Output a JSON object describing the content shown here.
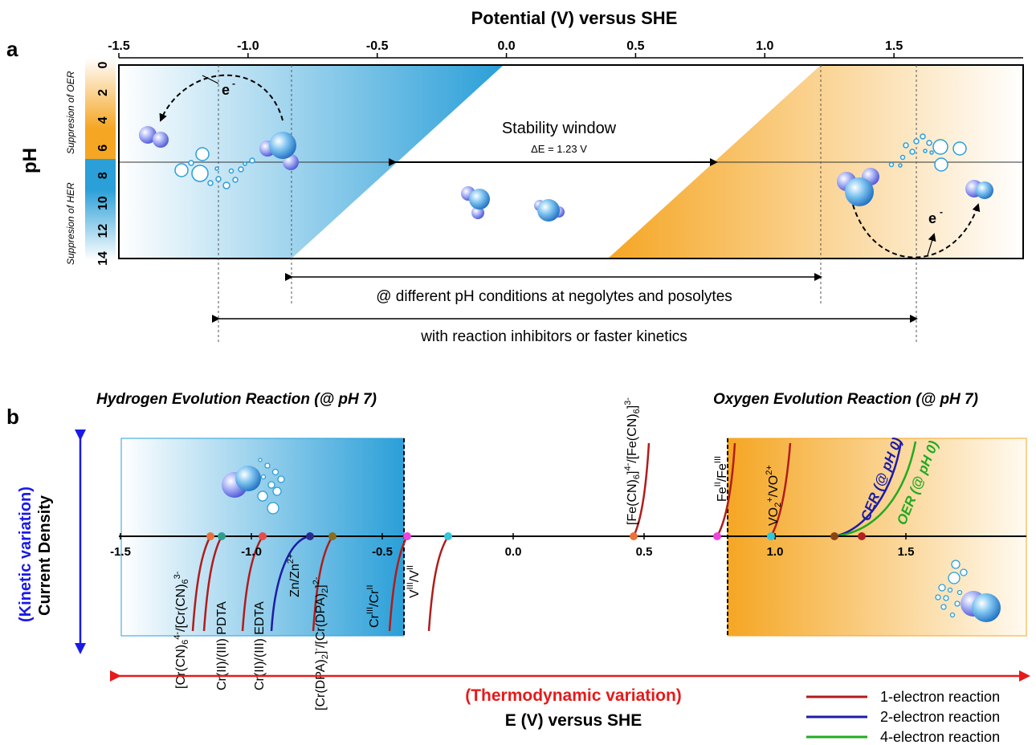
{
  "panel_a": {
    "label": "a",
    "x_axis_title": "Potential (V) versus SHE",
    "x_ticks": [
      "-1.5",
      "-1.0",
      "-0.5",
      "0.0",
      "0.5",
      "1.0",
      "1.5"
    ],
    "y_axis_title": "pH",
    "y_ticks": [
      "0",
      "2",
      "4",
      "6",
      "8",
      "10",
      "12",
      "14"
    ],
    "upper_side_label": "Suppresion of OER",
    "lower_side_label": "Suppresion of HER",
    "electron_label": "e",
    "electron_sup": "-",
    "stability_title": "Stability window",
    "stability_delta": "ΔE = 1.23 V",
    "range1_label": "@ different pH conditions at negolytes and posolytes",
    "range2_label": "with reaction inhibitors or faster kinetics",
    "colors": {
      "blue": "#2a9fd8",
      "orange": "#f5a623"
    }
  },
  "panel_b": {
    "label": "b",
    "her_title": "Hydrogen Evolution Reaction (@ pH 7)",
    "oer_title": "Oxygen Evolution Reaction (@ pH 7)",
    "x_ticks": [
      "-1.5",
      "-1.0",
      "-0.5",
      "0.0",
      "0.5",
      "1.0",
      "1.5"
    ],
    "y_title_colored": "(Kinetic variation)",
    "y_title": "Current Density",
    "x_title_colored": "(Thermodynamic variation)",
    "x_title": "E (V) versus SHE",
    "couples_below": [
      {
        "text": "[Cr(CN)6]4-/[Cr(CN)6]3-",
        "color": "#e8743b"
      },
      {
        "text": "Cr(II)/(III) PDTA",
        "color": "#2e9f8c"
      },
      {
        "text": "Cr(II)/(III) EDTA",
        "color": "#e84b4b"
      },
      {
        "text": "Zn/Zn2+",
        "color": "#2b2b8f"
      },
      {
        "text": "[Cr(DPA)2]-/[Cr(DPA)2]2-",
        "color": "#8a6d1e"
      },
      {
        "text": "CrIII/CrII",
        "color": "#ee44dd"
      },
      {
        "text": "VIII/VII",
        "color": "#33c6dd"
      }
    ],
    "couples_above": [
      {
        "text": "[Fe(CN)6]4-/[Fe(CN)6]3-",
        "color": "#e8743b"
      },
      {
        "text": "FeII/FeIII",
        "color": "#ee44dd"
      },
      {
        "text": "VO2+/VO2+",
        "color": "#33c6dd"
      },
      {
        "text": "CER (@ pH 0)",
        "color": "#8b4513"
      },
      {
        "text": "OER (@ pH 0)",
        "color": "#b22222"
      }
    ],
    "legend": [
      {
        "label": "1-electron reaction",
        "color": "#b01c1c"
      },
      {
        "label": "2-electron reaction",
        "color": "#1c1ca8"
      },
      {
        "label": "4-electron reaction",
        "color": "#22aa22"
      }
    ],
    "colors": {
      "kinetic": "#1a1ae6",
      "thermo": "#e61a1a",
      "cer": "#1c1ca8",
      "oer": "#22aa22"
    }
  }
}
